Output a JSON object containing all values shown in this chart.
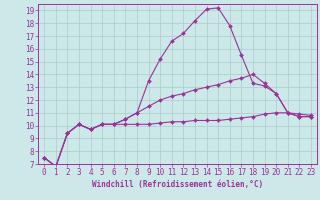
{
  "xlabel": "Windchill (Refroidissement éolien,°C)",
  "bg_color": "#cce8e8",
  "line_color": "#993399",
  "xlim": [
    -0.5,
    23.5
  ],
  "ylim": [
    7,
    19.5
  ],
  "yticks": [
    7,
    8,
    9,
    10,
    11,
    12,
    13,
    14,
    15,
    16,
    17,
    18,
    19
  ],
  "xticks": [
    0,
    1,
    2,
    3,
    4,
    5,
    6,
    7,
    8,
    9,
    10,
    11,
    12,
    13,
    14,
    15,
    16,
    17,
    18,
    19,
    20,
    21,
    22,
    23
  ],
  "line1_x": [
    0,
    1,
    2,
    3,
    4,
    5,
    6,
    7,
    8,
    9,
    10,
    11,
    12,
    13,
    14,
    15,
    16,
    17,
    18,
    19,
    20,
    21,
    22,
    23
  ],
  "line1_y": [
    7.5,
    6.8,
    9.4,
    10.1,
    9.7,
    10.1,
    10.1,
    10.1,
    10.1,
    10.1,
    10.2,
    10.3,
    10.3,
    10.4,
    10.4,
    10.4,
    10.5,
    10.6,
    10.7,
    10.9,
    11.0,
    11.0,
    10.9,
    10.8
  ],
  "line2_x": [
    0,
    1,
    2,
    3,
    4,
    5,
    6,
    7,
    8,
    9,
    10,
    11,
    12,
    13,
    14,
    15,
    16,
    17,
    18,
    19,
    20,
    21,
    22,
    23
  ],
  "line2_y": [
    7.5,
    6.8,
    9.4,
    10.1,
    9.7,
    10.1,
    10.1,
    10.5,
    11.0,
    13.5,
    15.2,
    16.6,
    17.2,
    18.2,
    19.1,
    19.2,
    17.8,
    15.5,
    13.3,
    13.1,
    12.5,
    11.0,
    10.7,
    10.7
  ],
  "line3_x": [
    0,
    1,
    2,
    3,
    4,
    5,
    6,
    7,
    8,
    9,
    10,
    11,
    12,
    13,
    14,
    15,
    16,
    17,
    18,
    19,
    20,
    21,
    22,
    23
  ],
  "line3_y": [
    7.5,
    6.8,
    9.4,
    10.1,
    9.7,
    10.1,
    10.1,
    10.5,
    11.0,
    11.5,
    12.0,
    12.3,
    12.5,
    12.8,
    13.0,
    13.2,
    13.5,
    13.7,
    14.0,
    13.3,
    12.5,
    11.0,
    10.7,
    10.7
  ],
  "marker": "D",
  "marker_size": 2.0,
  "linewidth": 0.8,
  "grid_color": "#aacccc",
  "font_color": "#993399",
  "tick_fontsize": 5.5,
  "xlabel_fontsize": 5.5
}
